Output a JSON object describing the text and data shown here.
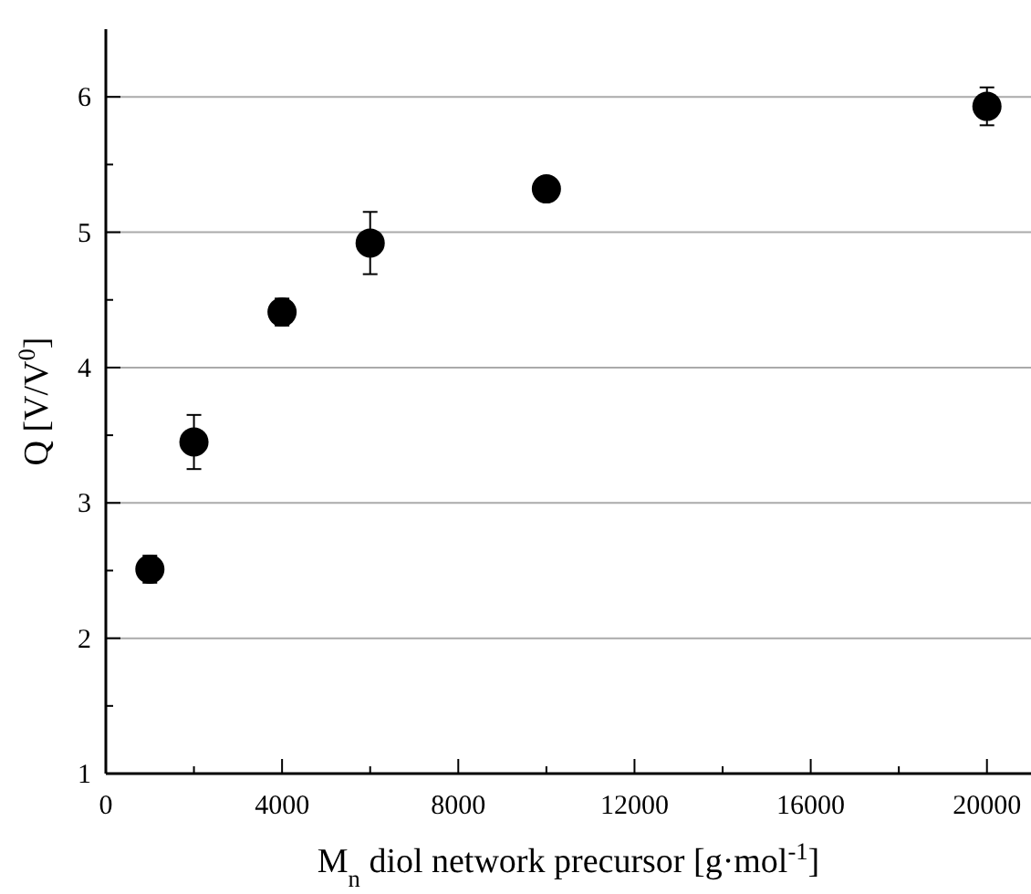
{
  "chart_data": {
    "type": "scatter",
    "xlabel": "M$_{n}$ diol network precursor [g·mol$^{-1}$]",
    "ylabel": "Q [V/V$^{0}$]",
    "x": [
      1000,
      2000,
      4000,
      6000,
      10000,
      20000
    ],
    "values": [
      2.51,
      3.45,
      4.41,
      4.92,
      5.32,
      5.93
    ],
    "errors": [
      0.1,
      0.2,
      0.1,
      0.23,
      null,
      0.14
    ],
    "color": "#000000",
    "marker": "circle",
    "grid": "y",
    "xlim": [
      0,
      21000
    ],
    "ylim": [
      1,
      6.5
    ],
    "xticks": [
      0,
      {
        "value": 2000,
        "label": null
      },
      4000,
      {
        "value": 6000,
        "label": null
      },
      8000,
      {
        "value": 10000,
        "label": null
      },
      12000,
      {
        "value": 14000,
        "label": null
      },
      16000,
      {
        "value": 18000,
        "label": null
      },
      20000
    ],
    "yticks": [
      1,
      {
        "value": 1.5,
        "label": null
      },
      2,
      {
        "value": 2.5,
        "label": null
      },
      3,
      {
        "value": 3.5,
        "label": null
      },
      4,
      {
        "value": 4.5,
        "label": null
      },
      5,
      {
        "value": 5.5,
        "label": null
      },
      6
    ]
  }
}
